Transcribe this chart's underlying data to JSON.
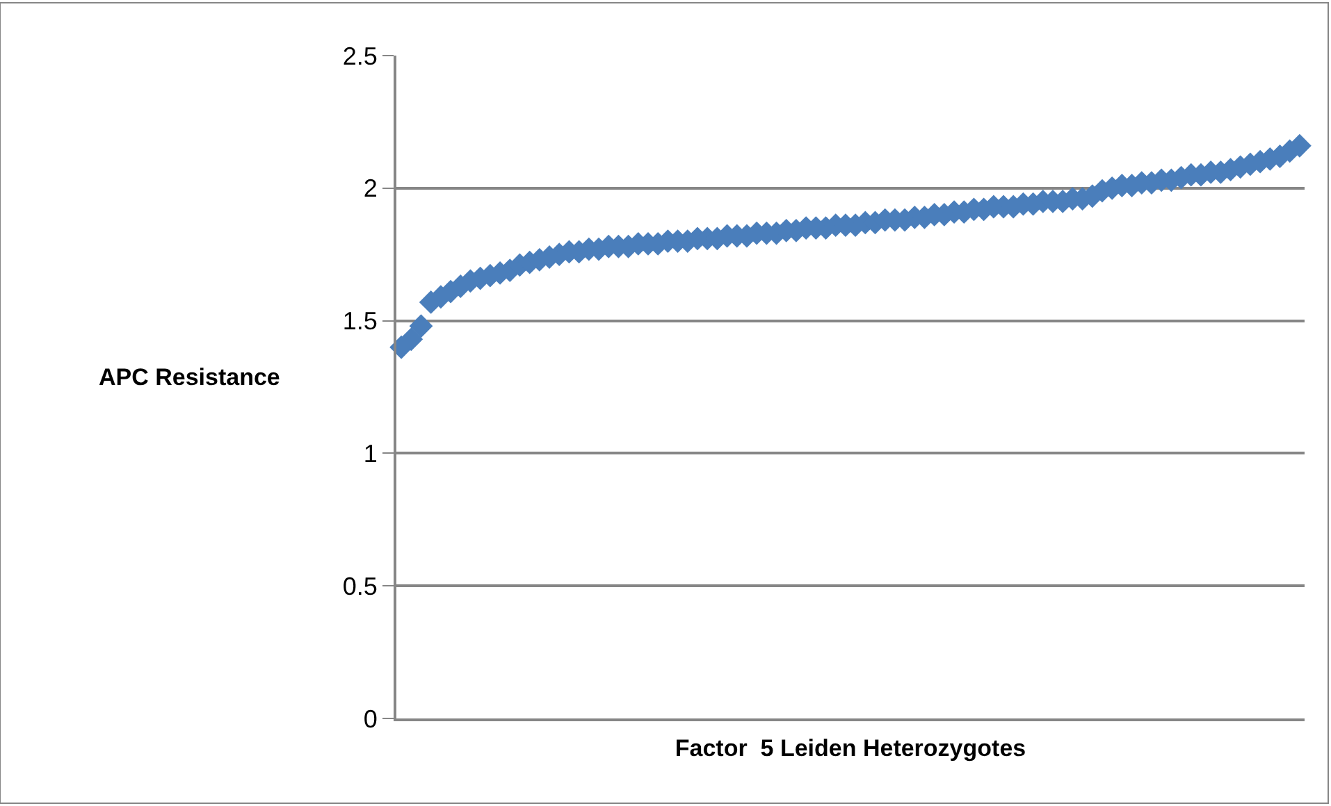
{
  "chart_data": {
    "type": "scatter",
    "marker": "diamond",
    "grid": "y",
    "tick_labels": "y",
    "xlabel": "Factor  5 Leiden Heterozygotes",
    "ylabel": "APC Resistance",
    "categories": [
      null,
      null,
      null,
      null,
      null,
      null,
      null,
      null,
      null,
      null,
      null,
      null,
      null,
      null,
      null,
      null,
      null,
      null,
      null,
      null,
      null,
      null,
      null,
      null,
      null,
      null,
      null,
      null,
      null,
      null,
      null,
      null,
      null,
      null,
      null,
      null,
      null,
      null,
      null,
      null,
      null,
      null,
      null,
      null,
      null,
      null,
      null,
      null,
      null,
      null,
      null,
      null,
      null,
      null,
      null,
      null,
      null,
      null,
      null,
      null,
      null,
      null,
      null,
      null,
      null,
      null,
      null,
      null,
      null,
      null,
      null,
      null,
      null,
      null,
      null,
      null,
      null,
      null,
      null,
      null,
      null,
      null,
      null,
      null,
      null,
      null,
      null,
      null,
      null,
      null,
      null,
      null
    ],
    "series": [
      {
        "color": "#4a7ebb",
        "values": [
          1.4,
          1.43,
          1.48,
          1.57,
          1.59,
          1.61,
          1.63,
          1.65,
          1.66,
          1.67,
          1.68,
          1.69,
          1.71,
          1.72,
          1.73,
          1.74,
          1.75,
          1.76,
          1.76,
          1.77,
          1.77,
          1.78,
          1.78,
          1.78,
          1.79,
          1.79,
          1.79,
          1.8,
          1.8,
          1.8,
          1.81,
          1.81,
          1.81,
          1.82,
          1.82,
          1.82,
          1.83,
          1.83,
          1.83,
          1.84,
          1.84,
          1.85,
          1.85,
          1.85,
          1.86,
          1.86,
          1.86,
          1.87,
          1.87,
          1.88,
          1.88,
          1.88,
          1.89,
          1.89,
          1.9,
          1.9,
          1.91,
          1.91,
          1.92,
          1.92,
          1.93,
          1.93,
          1.93,
          1.94,
          1.94,
          1.95,
          1.95,
          1.95,
          1.96,
          1.96,
          1.97,
          1.99,
          2.0,
          2.01,
          2.01,
          2.02,
          2.02,
          2.03,
          2.03,
          2.04,
          2.05,
          2.05,
          2.06,
          2.06,
          2.07,
          2.08,
          2.09,
          2.1,
          2.11,
          2.12,
          2.14,
          2.16
        ]
      }
    ],
    "ylim": [
      0,
      2.5
    ],
    "yticks": [
      0,
      0.5,
      1,
      1.5,
      2,
      2.5
    ]
  }
}
